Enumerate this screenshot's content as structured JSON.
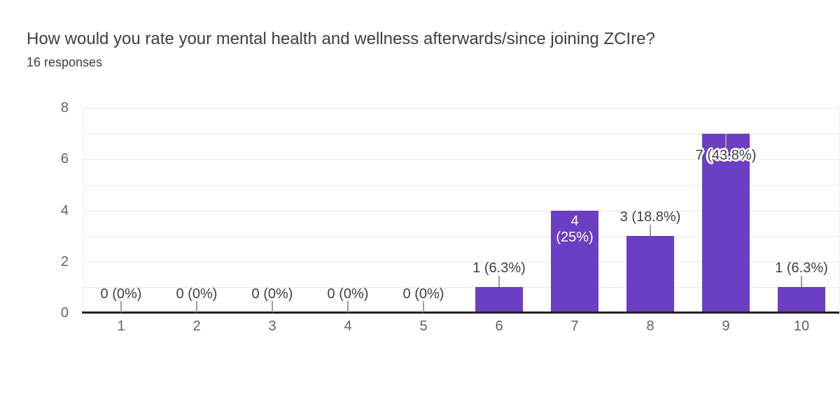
{
  "header": {
    "title": "How would you rate your mental health and wellness afterwards/since joining ZCIre?",
    "responses": "16 responses"
  },
  "chart_data": {
    "type": "bar",
    "title": "How would you rate your mental health and wellness afterwards/since joining ZCIre?",
    "subtitle": "16 responses",
    "total_responses": 16,
    "categories": [
      "1",
      "2",
      "3",
      "4",
      "5",
      "6",
      "7",
      "8",
      "9",
      "10"
    ],
    "values": [
      0,
      0,
      0,
      0,
      0,
      1,
      4,
      3,
      7,
      1
    ],
    "labels": [
      "0 (0%)",
      "0 (0%)",
      "0 (0%)",
      "0 (0%)",
      "0 (0%)",
      "1 (6.3%)",
      "4 (25%)",
      "3 (18.8%)",
      "7 (43.8%)",
      "1 (6.3%)"
    ],
    "label_positions": [
      "above-axis",
      "above-axis",
      "above-axis",
      "above-axis",
      "above-axis",
      "above-bar",
      "inside-bar",
      "above-bar",
      "overlap-top",
      "above-bar"
    ],
    "inside_label_lines": {
      "6": [
        "4",
        "(25%)"
      ]
    },
    "xlabel": "",
    "ylabel": "",
    "ylim": [
      0,
      8
    ],
    "yticks": [
      0,
      2,
      4,
      6,
      8
    ],
    "grid": true,
    "legend": "none",
    "bar_color": "#6b3ec3"
  },
  "colors": {
    "background": "#ffffff",
    "bar": "#6b3ec3",
    "title_text": "#3c4043",
    "axis_text": "#5f6368",
    "data_label_text": "#3c4043",
    "inside_label_text": "#ffffff",
    "grid_line": "#e9e9e9",
    "plot_border": "#ececec",
    "baseline": "#212121",
    "leader_line": "#9e9e9e"
  }
}
